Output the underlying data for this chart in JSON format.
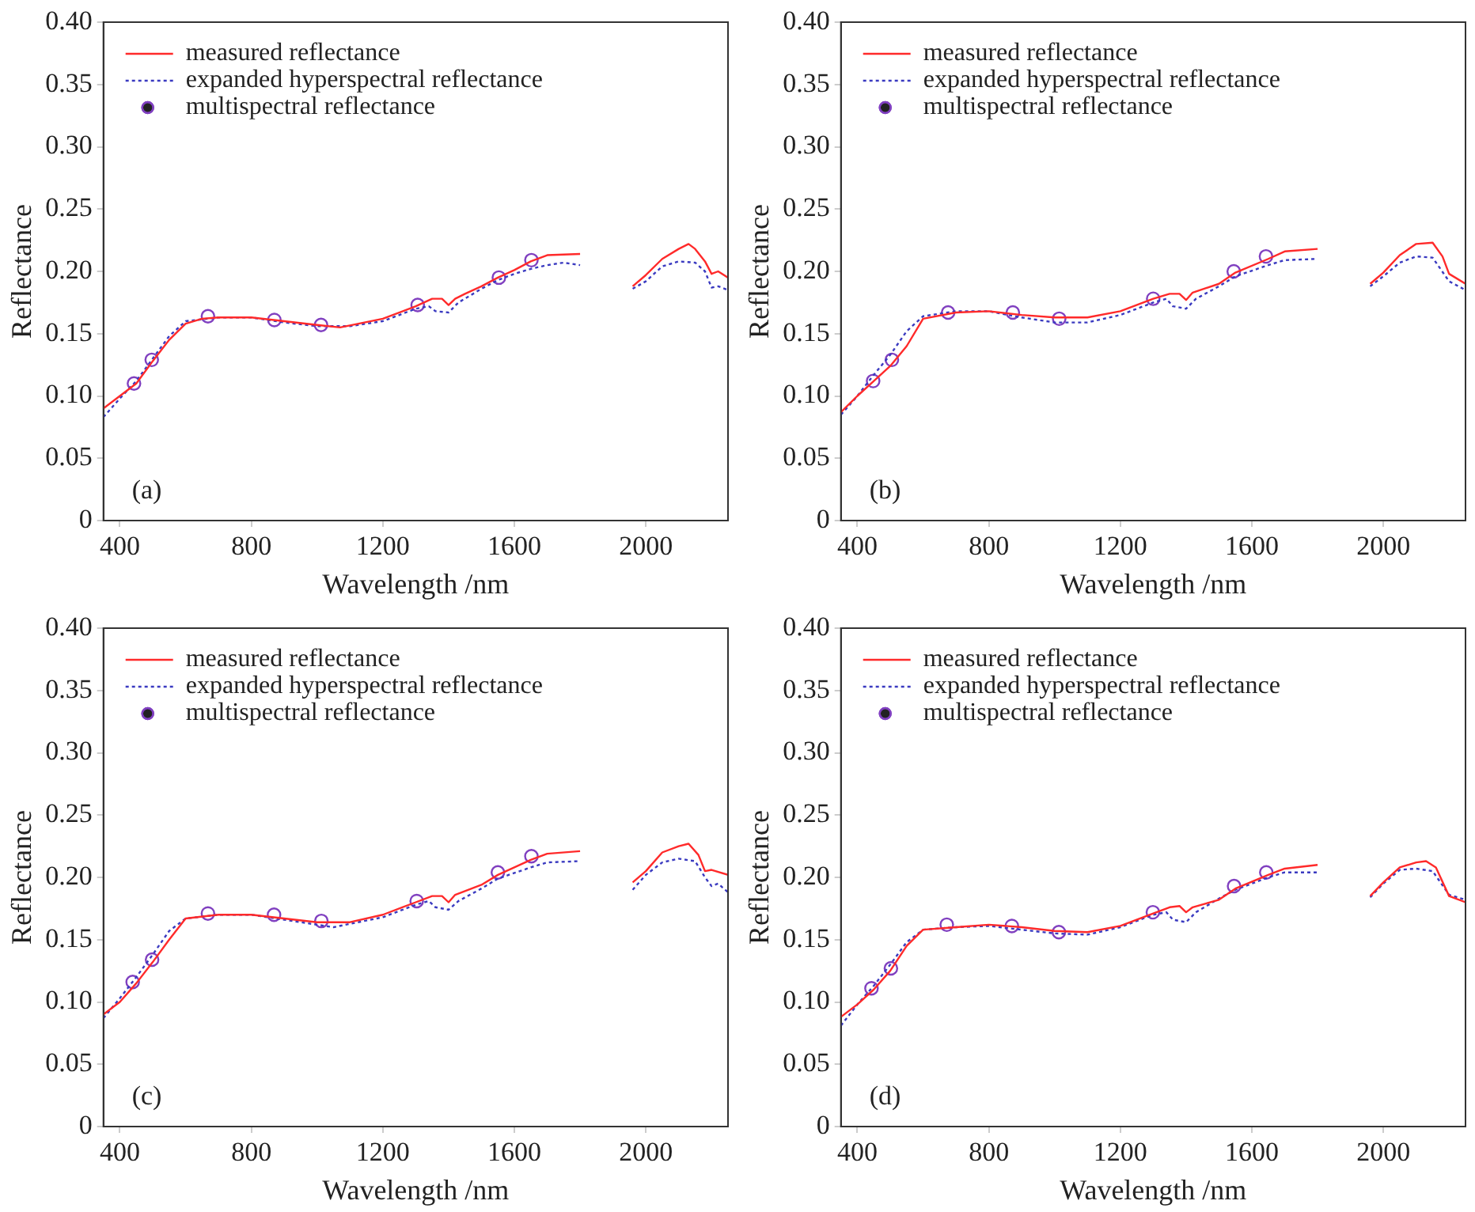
{
  "chart_data": [
    {
      "type": "line",
      "xlabel": "Wavelength /nm",
      "ylabel": "Reflectance",
      "annotations": [
        "(a)"
      ],
      "xlim": [
        350,
        2250
      ],
      "xticks": [
        400,
        800,
        1200,
        1600,
        2000
      ],
      "ylim": [
        0,
        0.4
      ],
      "yticks": [
        0,
        0.05,
        {
          "value": 0.1,
          "label": "0.10"
        },
        0.15,
        {
          "value": 0.2,
          "label": "0.20"
        },
        0.25,
        {
          "value": 0.3,
          "label": "0.30"
        },
        0.35,
        {
          "value": 0.4,
          "label": "0.40"
        }
      ],
      "legend": "top left",
      "grid": false,
      "series": [
        {
          "name": "measured reflectance",
          "type": "line",
          "line_style": "solid",
          "color": "#ff2a2a",
          "x": [
            350,
            400,
            450,
            500,
            550,
            600,
            650,
            700,
            800,
            900,
            1000,
            1070,
            1200,
            1300,
            1350,
            1380,
            1400,
            1420,
            1450,
            1500,
            1550,
            1600,
            1650,
            1700,
            1800,
            1880,
            1960,
            2000,
            2050,
            2100,
            2130,
            2150,
            2180,
            2200,
            2220,
            2250
          ],
          "values": [
            0.09,
            0.1,
            0.11,
            0.128,
            0.145,
            0.158,
            0.162,
            0.163,
            0.163,
            0.16,
            0.157,
            0.155,
            0.162,
            0.172,
            0.178,
            0.178,
            0.173,
            0.178,
            0.182,
            0.188,
            0.195,
            0.201,
            0.208,
            0.213,
            0.214,
            null,
            0.188,
            0.197,
            0.21,
            0.218,
            0.222,
            0.218,
            0.208,
            0.198,
            0.2,
            0.195
          ]
        },
        {
          "name": "expanded hyperspectral reflectance",
          "type": "line",
          "line_style": "dotted",
          "color": "#3a3ac0",
          "x": [
            350,
            400,
            450,
            500,
            550,
            600,
            700,
            800,
            900,
            1000,
            1100,
            1200,
            1300,
            1340,
            1360,
            1400,
            1430,
            1500,
            1550,
            1600,
            1650,
            1700,
            1750,
            1800,
            1880,
            1960,
            2000,
            2050,
            2100,
            2150,
            2180,
            2200,
            2220,
            2250
          ],
          "values": [
            0.083,
            0.098,
            0.112,
            0.13,
            0.148,
            0.16,
            0.163,
            0.163,
            0.159,
            0.156,
            0.156,
            0.16,
            0.17,
            0.172,
            0.168,
            0.167,
            0.175,
            0.186,
            0.193,
            0.198,
            0.202,
            0.205,
            0.207,
            0.205,
            null,
            0.186,
            0.192,
            0.204,
            0.208,
            0.207,
            0.2,
            0.187,
            0.188,
            0.185
          ]
        },
        {
          "name": "multispectral reflectance",
          "type": "scatter",
          "marker": "circle",
          "color": "#8040c0",
          "x": [
            443,
            497,
            668,
            870,
            1012,
            1306,
            1553,
            1652
          ],
          "values": [
            0.11,
            0.129,
            0.164,
            0.161,
            0.157,
            0.173,
            0.195,
            0.209
          ]
        }
      ]
    },
    {
      "type": "line",
      "xlabel": "Wavelength /nm",
      "ylabel": "Reflectance",
      "annotations": [
        "(b)"
      ],
      "xlim": [
        350,
        2250
      ],
      "xticks": [
        400,
        800,
        1200,
        1600,
        2000
      ],
      "ylim": [
        0,
        0.4
      ],
      "yticks": [
        0,
        0.05,
        {
          "value": 0.1,
          "label": "0.10"
        },
        0.15,
        {
          "value": 0.2,
          "label": "0.20"
        },
        0.25,
        {
          "value": 0.3,
          "label": "0.30"
        },
        0.35,
        {
          "value": 0.4,
          "label": "0.40"
        }
      ],
      "legend": "top left",
      "grid": false,
      "series": [
        {
          "name": "measured reflectance",
          "type": "line",
          "line_style": "solid",
          "color": "#ff2a2a",
          "x": [
            350,
            400,
            450,
            500,
            550,
            600,
            700,
            800,
            900,
            1000,
            1100,
            1200,
            1300,
            1350,
            1380,
            1400,
            1420,
            1500,
            1550,
            1650,
            1700,
            1800,
            1880,
            1960,
            2000,
            2050,
            2100,
            2150,
            2180,
            2200,
            2250
          ],
          "values": [
            0.087,
            0.1,
            0.112,
            0.124,
            0.14,
            0.162,
            0.167,
            0.168,
            0.165,
            0.163,
            0.163,
            0.168,
            0.178,
            0.182,
            0.182,
            0.177,
            0.183,
            0.19,
            0.199,
            0.21,
            0.216,
            0.218,
            null,
            0.19,
            0.199,
            0.213,
            0.222,
            0.223,
            0.212,
            0.198,
            0.19
          ]
        },
        {
          "name": "expanded hyperspectral reflectance",
          "type": "line",
          "line_style": "dotted",
          "color": "#3a3ac0",
          "x": [
            350,
            400,
            450,
            500,
            550,
            600,
            700,
            800,
            900,
            1000,
            1100,
            1200,
            1300,
            1340,
            1360,
            1400,
            1430,
            1500,
            1550,
            1650,
            1700,
            1800,
            1880,
            1960,
            2000,
            2050,
            2100,
            2150,
            2200,
            2250
          ],
          "values": [
            0.085,
            0.1,
            0.117,
            0.133,
            0.152,
            0.164,
            0.168,
            0.168,
            0.163,
            0.159,
            0.159,
            0.165,
            0.175,
            0.178,
            0.172,
            0.17,
            0.178,
            0.188,
            0.196,
            0.205,
            0.209,
            0.21,
            null,
            0.188,
            0.196,
            0.207,
            0.212,
            0.211,
            0.192,
            0.185
          ]
        },
        {
          "name": "multispectral reflectance",
          "type": "scatter",
          "marker": "circle",
          "color": "#8040c0",
          "x": [
            448,
            505,
            676,
            873,
            1014,
            1300,
            1545,
            1643
          ],
          "values": [
            0.112,
            0.129,
            0.167,
            0.167,
            0.162,
            0.178,
            0.2,
            0.212
          ]
        }
      ]
    },
    {
      "type": "line",
      "xlabel": "Wavelength /nm",
      "ylabel": "Reflectance",
      "annotations": [
        "(c)"
      ],
      "xlim": [
        350,
        2250
      ],
      "xticks": [
        400,
        800,
        1200,
        1600,
        2000
      ],
      "ylim": [
        0,
        0.4
      ],
      "yticks": [
        0,
        0.05,
        {
          "value": 0.1,
          "label": "0.10"
        },
        0.15,
        {
          "value": 0.2,
          "label": "0.20"
        },
        0.25,
        {
          "value": 0.3,
          "label": "0.30"
        },
        0.35,
        {
          "value": 0.4,
          "label": "0.40"
        }
      ],
      "legend": "top left",
      "grid": false,
      "series": [
        {
          "name": "measured reflectance",
          "type": "line",
          "line_style": "solid",
          "color": "#ff2a2a",
          "x": [
            350,
            400,
            450,
            500,
            550,
            600,
            700,
            800,
            900,
            1000,
            1100,
            1200,
            1300,
            1350,
            1380,
            1400,
            1420,
            1500,
            1550,
            1650,
            1700,
            1800,
            1880,
            1960,
            2000,
            2050,
            2100,
            2130,
            2160,
            2180,
            2200,
            2250
          ],
          "values": [
            0.09,
            0.1,
            0.115,
            0.132,
            0.15,
            0.167,
            0.17,
            0.17,
            0.167,
            0.164,
            0.164,
            0.17,
            0.18,
            0.185,
            0.185,
            0.18,
            0.186,
            0.194,
            0.202,
            0.214,
            0.219,
            0.221,
            null,
            0.196,
            0.205,
            0.22,
            0.225,
            0.227,
            0.218,
            0.205,
            0.206,
            0.202
          ]
        },
        {
          "name": "expanded hyperspectral reflectance",
          "type": "line",
          "line_style": "dotted",
          "color": "#3a3ac0",
          "x": [
            350,
            400,
            450,
            500,
            550,
            600,
            700,
            800,
            900,
            1000,
            1050,
            1200,
            1300,
            1340,
            1360,
            1400,
            1430,
            1500,
            1550,
            1650,
            1700,
            1800,
            1880,
            1960,
            2000,
            2050,
            2100,
            2150,
            2180,
            2200,
            2220,
            2250
          ],
          "values": [
            0.087,
            0.103,
            0.12,
            0.138,
            0.157,
            0.167,
            0.17,
            0.17,
            0.166,
            0.162,
            0.16,
            0.168,
            0.178,
            0.181,
            0.176,
            0.174,
            0.181,
            0.191,
            0.199,
            0.208,
            0.212,
            0.213,
            null,
            0.19,
            0.202,
            0.212,
            0.215,
            0.213,
            0.2,
            0.193,
            0.195,
            0.188
          ]
        },
        {
          "name": "multispectral reflectance",
          "type": "scatter",
          "marker": "circle",
          "color": "#8040c0",
          "x": [
            439,
            498,
            668,
            869,
            1013,
            1303,
            1550,
            1652
          ],
          "values": [
            0.116,
            0.134,
            0.171,
            0.17,
            0.165,
            0.181,
            0.204,
            0.217
          ]
        }
      ]
    },
    {
      "type": "line",
      "xlabel": "Wavelength /nm",
      "ylabel": "Reflectance",
      "annotations": [
        "(d)"
      ],
      "xlim": [
        350,
        2250
      ],
      "xticks": [
        400,
        800,
        1200,
        1600,
        2000
      ],
      "ylim": [
        0,
        0.4
      ],
      "yticks": [
        0,
        0.05,
        {
          "value": 0.1,
          "label": "0.10"
        },
        0.15,
        {
          "value": 0.2,
          "label": "0.20"
        },
        0.25,
        {
          "value": 0.3,
          "label": "0.30"
        },
        0.35,
        {
          "value": 0.4,
          "label": "0.40"
        }
      ],
      "legend": "top left",
      "grid": false,
      "series": [
        {
          "name": "measured reflectance",
          "type": "line",
          "line_style": "solid",
          "color": "#ff2a2a",
          "x": [
            350,
            400,
            450,
            500,
            550,
            600,
            700,
            800,
            900,
            1000,
            1100,
            1200,
            1300,
            1350,
            1380,
            1400,
            1420,
            1500,
            1550,
            1650,
            1700,
            1800,
            1880,
            1960,
            2000,
            2050,
            2100,
            2130,
            2160,
            2200,
            2250
          ],
          "values": [
            0.088,
            0.098,
            0.11,
            0.125,
            0.145,
            0.158,
            0.16,
            0.162,
            0.16,
            0.157,
            0.156,
            0.161,
            0.171,
            0.176,
            0.177,
            0.172,
            0.176,
            0.182,
            0.191,
            0.202,
            0.207,
            0.21,
            null,
            0.185,
            0.196,
            0.208,
            0.212,
            0.213,
            0.208,
            0.185,
            0.18
          ]
        },
        {
          "name": "expanded hyperspectral reflectance",
          "type": "line",
          "line_style": "dotted",
          "color": "#3a3ac0",
          "x": [
            350,
            400,
            450,
            500,
            550,
            600,
            700,
            800,
            900,
            1000,
            1100,
            1200,
            1300,
            1340,
            1360,
            1400,
            1430,
            1500,
            1550,
            1650,
            1700,
            1800,
            1880,
            1960,
            2000,
            2050,
            2100,
            2150,
            2200,
            2250
          ],
          "values": [
            0.081,
            0.098,
            0.113,
            0.13,
            0.148,
            0.158,
            0.16,
            0.161,
            0.158,
            0.155,
            0.154,
            0.16,
            0.17,
            0.172,
            0.166,
            0.164,
            0.172,
            0.183,
            0.19,
            0.2,
            0.204,
            0.204,
            null,
            0.184,
            0.195,
            0.206,
            0.207,
            0.205,
            0.186,
            0.182
          ]
        },
        {
          "name": "multispectral reflectance",
          "type": "scatter",
          "marker": "circle",
          "color": "#8040c0",
          "x": [
            443,
            502,
            672,
            870,
            1013,
            1299,
            1546,
            1644
          ],
          "values": [
            0.111,
            0.127,
            0.162,
            0.161,
            0.156,
            0.172,
            0.193,
            0.204
          ]
        }
      ]
    }
  ]
}
